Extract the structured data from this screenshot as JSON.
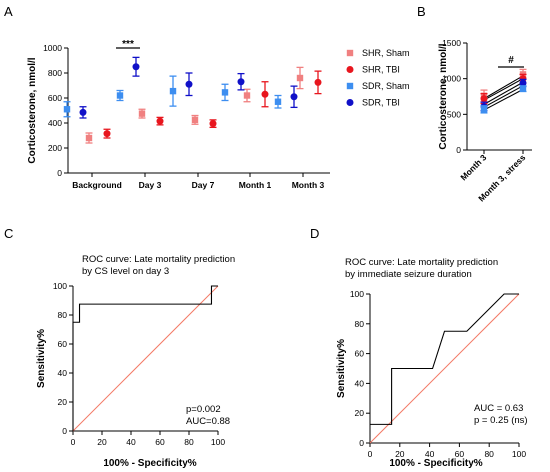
{
  "panels": {
    "a": {
      "letter": "A"
    },
    "b": {
      "letter": "B"
    },
    "c": {
      "letter": "C"
    },
    "d": {
      "letter": "D"
    }
  },
  "colors": {
    "shr_sham": "#f08080",
    "shr_tbi": "#e8161e",
    "sdr_sham": "#3d8ef0",
    "sdr_tbi": "#1010c8",
    "diag": "#f47a66"
  },
  "chart_data": [
    {
      "id": "A",
      "type": "scatter",
      "ylabel": "Corticosterone, nmol/l",
      "categories": [
        "Background",
        "Day 3",
        "Day 7",
        "Month 1",
        "Month 3"
      ],
      "ylim": [
        0,
        1000
      ],
      "yticks": [
        "0",
        "200",
        "400",
        "600",
        "800",
        "1000"
      ],
      "legend_position": "right",
      "series": [
        {
          "name": "SHR, Sham",
          "marker": "square",
          "color": "#f08080",
          "values": [
            280,
            475,
            425,
            620,
            760
          ],
          "errors": [
            40,
            35,
            35,
            50,
            85
          ]
        },
        {
          "name": "SHR, TBI",
          "marker": "circle",
          "color": "#e8161e",
          "values": [
            315,
            415,
            395,
            630,
            725
          ],
          "errors": [
            35,
            30,
            30,
            100,
            90
          ]
        },
        {
          "name": "SDR, Sham",
          "marker": "square",
          "color": "#3d8ef0",
          "values": [
            510,
            620,
            655,
            645,
            570
          ],
          "errors": [
            60,
            40,
            120,
            65,
            50
          ]
        },
        {
          "name": "SDR, TBI",
          "marker": "circle",
          "color": "#1010c8",
          "values": [
            485,
            850,
            710,
            730,
            610
          ],
          "errors": [
            45,
            75,
            90,
            65,
            85
          ]
        }
      ],
      "annotations": [
        {
          "text": "***",
          "between": [
            "SDR, Sham",
            "SDR, TBI"
          ],
          "category": "Day 3"
        }
      ]
    },
    {
      "id": "B",
      "type": "line",
      "ylabel": "Corticosterone, nmol/l",
      "categories": [
        "Month 3",
        "Month 3, stress"
      ],
      "ylim": [
        0,
        1500
      ],
      "yticks": [
        "0",
        "500",
        "1000",
        "1500"
      ],
      "series": [
        {
          "color": "#e8161e",
          "values": [
            720,
            1040
          ]
        },
        {
          "color": "#f08080",
          "values": [
            700,
            1000
          ]
        },
        {
          "color": "#1010c8",
          "values": [
            640,
            950
          ]
        },
        {
          "color": "#3d8ef0",
          "values": [
            560,
            850
          ]
        },
        {
          "color": "#1010c8",
          "values": [
            600,
            900
          ]
        }
      ],
      "summary": [
        {
          "color": "#f08080",
          "marker": "square",
          "values": [
            760,
            1060
          ],
          "errors": [
            80,
            70
          ]
        },
        {
          "color": "#e8161e",
          "marker": "circle",
          "values": [
            720,
            1000
          ],
          "errors": [
            70,
            60
          ]
        },
        {
          "color": "#1010c8",
          "marker": "circle",
          "values": [
            610,
            940
          ],
          "errors": [
            60,
            50
          ]
        },
        {
          "color": "#3d8ef0",
          "marker": "square",
          "values": [
            570,
            860
          ],
          "errors": [
            50,
            40
          ]
        }
      ],
      "annotations": [
        {
          "text": "#"
        }
      ]
    },
    {
      "id": "C",
      "type": "line",
      "title_lines": [
        "ROC curve: Late mortality prediction",
        "by CS level on day 3"
      ],
      "xlabel": "100% - Specificity%",
      "ylabel": "Sensitivity%",
      "xlim": [
        0,
        100
      ],
      "ylim": [
        0,
        100
      ],
      "xticks": [
        "0",
        "20",
        "40",
        "60",
        "80",
        "100"
      ],
      "yticks": [
        "0",
        "20",
        "40",
        "60",
        "80",
        "100"
      ],
      "roc": {
        "x": [
          0,
          0,
          4.5,
          4.5,
          95.5,
          95.5,
          100
        ],
        "y": [
          0,
          75,
          75,
          87.5,
          87.5,
          100,
          100
        ]
      },
      "stats": [
        "p=0.002",
        "AUC=0.88"
      ]
    },
    {
      "id": "D",
      "type": "line",
      "title_lines": [
        "ROC curve: Late mortality prediction",
        "by immediate seizure duration"
      ],
      "xlabel": "100% - Specificity%",
      "ylabel": "Sensitivity%",
      "xlim": [
        0,
        100
      ],
      "ylim": [
        0,
        100
      ],
      "xticks": [
        "0",
        "20",
        "40",
        "60",
        "80",
        "100"
      ],
      "yticks": [
        "0",
        "20",
        "40",
        "60",
        "80",
        "100"
      ],
      "roc": {
        "x": [
          0,
          14.5,
          14.5,
          42,
          50,
          65,
          90,
          100
        ],
        "y": [
          12.5,
          12.5,
          50,
          50,
          75,
          75,
          100,
          100
        ]
      },
      "stats": [
        "AUC = 0.63",
        "p = 0.25 (ns)"
      ]
    }
  ]
}
